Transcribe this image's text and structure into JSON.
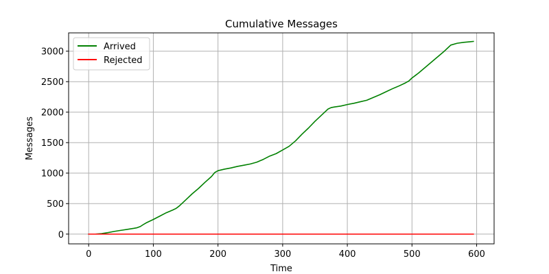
{
  "chart_data": {
    "type": "line",
    "title": "Cumulative Messages",
    "xlabel": "Time",
    "ylabel": "Messages",
    "xlim": [
      -31,
      627
    ],
    "ylim": [
      -160,
      3300
    ],
    "xticks": [
      0,
      100,
      200,
      300,
      400,
      500,
      600
    ],
    "yticks": [
      0,
      500,
      1000,
      1500,
      2000,
      2500,
      3000
    ],
    "grid": true,
    "legend_position": "top-left",
    "series": [
      {
        "name": "Arrived",
        "color": "#008000",
        "x": [
          0,
          10,
          20,
          30,
          40,
          50,
          60,
          70,
          75,
          80,
          85,
          90,
          100,
          110,
          120,
          130,
          135,
          140,
          150,
          160,
          170,
          180,
          190,
          195,
          200,
          210,
          220,
          230,
          240,
          250,
          260,
          270,
          280,
          290,
          300,
          310,
          320,
          330,
          340,
          350,
          360,
          370,
          375,
          380,
          390,
          400,
          410,
          420,
          430,
          440,
          450,
          460,
          470,
          480,
          490,
          495,
          500,
          505,
          510,
          520,
          530,
          540,
          550,
          555,
          560,
          570,
          580,
          590,
          595
        ],
        "y": [
          0,
          0,
          8,
          25,
          45,
          62,
          78,
          95,
          105,
          125,
          160,
          190,
          240,
          295,
          350,
          395,
          420,
          460,
          560,
          660,
          750,
          850,
          945,
          1010,
          1040,
          1065,
          1085,
          1110,
          1130,
          1150,
          1180,
          1225,
          1280,
          1320,
          1380,
          1440,
          1530,
          1640,
          1740,
          1850,
          1950,
          2050,
          2075,
          2085,
          2100,
          2125,
          2145,
          2170,
          2195,
          2240,
          2285,
          2335,
          2385,
          2430,
          2480,
          2510,
          2560,
          2600,
          2640,
          2730,
          2820,
          2910,
          3000,
          3050,
          3100,
          3130,
          3145,
          3155,
          3160
        ]
      },
      {
        "name": "Rejected",
        "color": "#ff0000",
        "x": [
          0,
          595
        ],
        "y": [
          0,
          0
        ]
      }
    ]
  }
}
